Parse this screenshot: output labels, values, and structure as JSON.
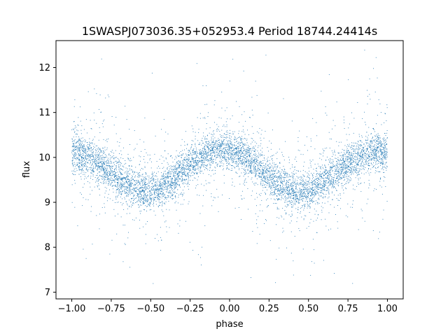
{
  "chart_data": {
    "type": "scatter",
    "title": "1SWASPJ073036.35+052953.4 Period 18744.24414s",
    "xlabel": "phase",
    "ylabel": "flux",
    "xlim": [
      -1.1,
      1.1
    ],
    "ylim": [
      6.85,
      12.6
    ],
    "xticks": [
      -1.0,
      -0.75,
      -0.5,
      -0.25,
      0.0,
      0.25,
      0.5,
      0.75,
      1.0
    ],
    "xtick_labels": [
      "−1.00",
      "−0.75",
      "−0.50",
      "−0.25",
      "0.00",
      "0.25",
      "0.50",
      "0.75",
      "1.00"
    ],
    "yticks": [
      7,
      8,
      9,
      10,
      11,
      12
    ],
    "ytick_labels": [
      "7",
      "8",
      "9",
      "10",
      "11",
      "12"
    ],
    "grid": false,
    "marker_color": "#1f77b4",
    "series": [
      {
        "x": [
          -1.0,
          -0.95,
          -0.9,
          -0.85,
          -0.8,
          -0.75,
          -0.7,
          -0.65,
          -0.6,
          -0.55,
          -0.5,
          -0.45,
          -0.4,
          -0.35,
          -0.3,
          -0.25,
          -0.2,
          -0.15,
          -0.1,
          -0.05,
          0.0,
          0.05,
          0.1,
          0.15,
          0.2,
          0.25,
          0.3,
          0.35,
          0.4,
          0.45,
          0.5,
          0.55,
          0.6,
          0.65,
          0.7,
          0.75,
          0.8,
          0.85,
          0.9,
          0.95,
          1.0
        ],
        "y": [
          10.1,
          10.05,
          10.0,
          9.9,
          9.8,
          9.65,
          9.5,
          9.4,
          9.3,
          9.25,
          9.25,
          9.3,
          9.4,
          9.55,
          9.7,
          9.85,
          9.98,
          10.08,
          10.15,
          10.17,
          10.15,
          10.1,
          10.0,
          9.88,
          9.73,
          9.58,
          9.45,
          9.33,
          9.25,
          9.22,
          9.25,
          9.32,
          9.45,
          9.58,
          9.72,
          9.85,
          9.95,
          10.05,
          10.1,
          10.12,
          10.1
        ]
      }
    ]
  }
}
